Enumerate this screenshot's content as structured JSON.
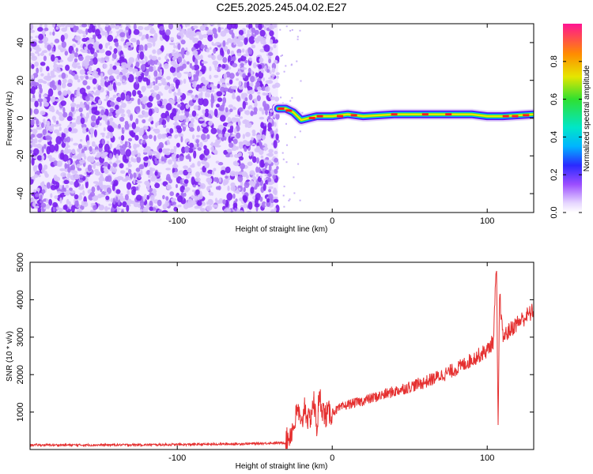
{
  "title": "C2E5.2025.245.04.02.E27",
  "colors": {
    "snr_line": "#e53030",
    "spec_low": "#b089f0",
    "spec_dense": "#7a1ff0"
  },
  "chart_data": [
    {
      "type": "heatmap",
      "xlabel": "Height of straight line (km)",
      "ylabel": "Frequency (Hz)",
      "xlim": [
        -195,
        130
      ],
      "ylim": [
        -50,
        50
      ],
      "xticks": [
        -100,
        0,
        100
      ],
      "yticks": [
        -40,
        -20,
        0,
        20,
        40
      ],
      "noise_region_x": [
        -195,
        -35
      ],
      "signal_band": {
        "x_start": -35,
        "x_end": 130,
        "freq_path": [
          [
            -35,
            5
          ],
          [
            -30,
            5
          ],
          [
            -25,
            3
          ],
          [
            -20,
            -1
          ],
          [
            -15,
            0
          ],
          [
            -10,
            1
          ],
          [
            0,
            1
          ],
          [
            10,
            2
          ],
          [
            20,
            1
          ],
          [
            40,
            2
          ],
          [
            60,
            2
          ],
          [
            80,
            2
          ],
          [
            90,
            2
          ],
          [
            100,
            1
          ],
          [
            110,
            1
          ],
          [
            130,
            2
          ]
        ]
      },
      "colorbar": {
        "label": "Normalized spectral amplitude",
        "ticks": [
          0.0,
          0.2,
          0.4,
          0.6,
          0.8
        ],
        "tick_labels": [
          "0.0",
          "0.2",
          "0.4",
          "0.6",
          "0.8"
        ],
        "range": [
          0,
          1
        ]
      }
    },
    {
      "type": "line",
      "xlabel": "Height of straight line (km)",
      "ylabel": "SNR (10 * v/v)",
      "xlim": [
        -195,
        130
      ],
      "ylim": [
        0,
        5000
      ],
      "xticks": [
        -100,
        0,
        100
      ],
      "yticks": [
        1000,
        2000,
        3000,
        4000,
        5000
      ],
      "series": [
        {
          "x": [
            -195,
            -150,
            -100,
            -60,
            -30,
            -25,
            -22,
            -20,
            -18,
            -15,
            -12,
            -10,
            -8,
            -5,
            0,
            10,
            20,
            40,
            60,
            80,
            100,
            104,
            106,
            107,
            108,
            110,
            115,
            120,
            130
          ],
          "y": [
            120,
            120,
            130,
            150,
            180,
            600,
            1100,
            500,
            1200,
            700,
            1300,
            600,
            1400,
            900,
            1000,
            1200,
            1300,
            1550,
            1800,
            2150,
            2650,
            2900,
            5000,
            450,
            4200,
            3000,
            3200,
            3400,
            3700
          ]
        }
      ]
    }
  ]
}
